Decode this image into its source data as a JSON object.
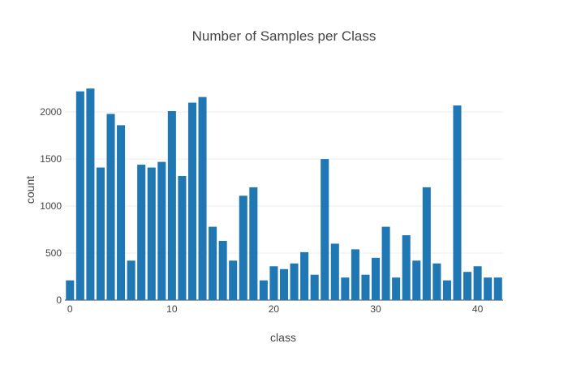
{
  "chart_data": {
    "type": "bar",
    "title": "Number of Samples per Class",
    "xlabel": "class",
    "ylabel": "count",
    "x": [
      0,
      1,
      2,
      3,
      4,
      5,
      6,
      7,
      8,
      9,
      10,
      11,
      12,
      13,
      14,
      15,
      16,
      17,
      18,
      19,
      20,
      21,
      22,
      23,
      24,
      25,
      26,
      27,
      28,
      29,
      30,
      31,
      32,
      33,
      34,
      35,
      36,
      37,
      38,
      39,
      40,
      41,
      42
    ],
    "values": [
      210,
      2220,
      2250,
      1410,
      1980,
      1860,
      420,
      1440,
      1410,
      1470,
      2010,
      1320,
      2100,
      2160,
      780,
      630,
      420,
      1110,
      1200,
      210,
      360,
      330,
      390,
      510,
      270,
      1500,
      600,
      240,
      540,
      270,
      450,
      780,
      240,
      690,
      420,
      1200,
      390,
      210,
      2070,
      300,
      360,
      240,
      240
    ],
    "xlim": [
      -0.5,
      42.5
    ],
    "ylim": [
      0,
      2260
    ],
    "xticks": [
      0,
      10,
      20,
      30,
      40
    ],
    "yticks": [
      0,
      500,
      1000,
      1500,
      2000
    ],
    "bar_color": "#1f77b4",
    "grid": true
  }
}
